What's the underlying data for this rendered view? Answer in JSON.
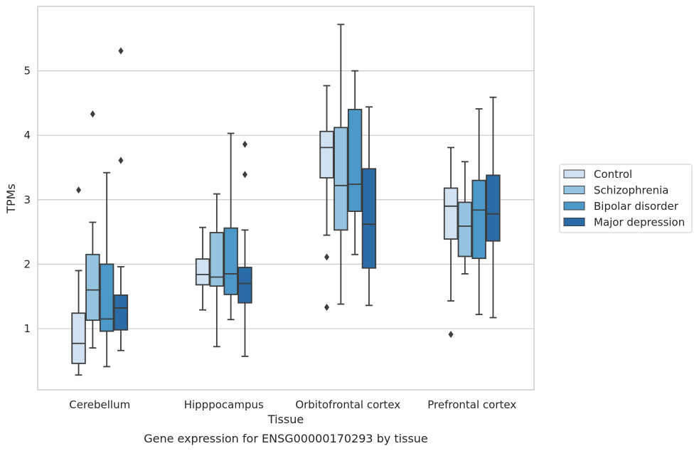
{
  "caption": "Gene expression for ENSG00000170293 by tissue",
  "chart_data": {
    "type": "box",
    "xlabel": "Tissue",
    "ylabel": "TPMs",
    "categories": [
      "Cerebellum",
      "Hipppocampus",
      "Orbitofrontal cortex",
      "Prefrontal cortex"
    ],
    "yticks": [
      1,
      2,
      3,
      4,
      5
    ],
    "ylim": [
      0.05,
      6.0
    ],
    "grid": "horizontal",
    "legend_position": "right",
    "series": [
      {
        "name": "Control",
        "color": "#d0e1f2",
        "boxes": [
          {
            "whisker_low": 0.28,
            "q1": 0.46,
            "median": 0.77,
            "q3": 1.24,
            "whisker_high": 1.9,
            "outliers": [
              3.15
            ]
          },
          {
            "whisker_low": 1.29,
            "q1": 1.68,
            "median": 1.84,
            "q3": 2.08,
            "whisker_high": 2.57,
            "outliers": []
          },
          {
            "whisker_low": 2.45,
            "q1": 3.34,
            "median": 3.81,
            "q3": 4.06,
            "whisker_high": 4.77,
            "outliers": [
              2.11,
              1.33
            ]
          },
          {
            "whisker_low": 1.43,
            "q1": 2.39,
            "median": 2.9,
            "q3": 3.18,
            "whisker_high": 3.81,
            "outliers": [
              0.91
            ]
          }
        ]
      },
      {
        "name": "Schizophrenia",
        "color": "#94c4df",
        "boxes": [
          {
            "whisker_low": 0.7,
            "q1": 1.13,
            "median": 1.6,
            "q3": 2.15,
            "whisker_high": 2.65,
            "outliers": [
              4.33
            ]
          },
          {
            "whisker_low": 0.72,
            "q1": 1.66,
            "median": 1.8,
            "q3": 2.49,
            "whisker_high": 3.09,
            "outliers": []
          },
          {
            "whisker_low": 1.38,
            "q1": 2.53,
            "median": 3.22,
            "q3": 4.12,
            "whisker_high": 5.72,
            "outliers": []
          },
          {
            "whisker_low": 1.85,
            "q1": 2.12,
            "median": 2.59,
            "q3": 2.96,
            "whisker_high": 3.59,
            "outliers": []
          }
        ]
      },
      {
        "name": "Bipolar disorder",
        "color": "#4b98c9",
        "boxes": [
          {
            "whisker_low": 0.41,
            "q1": 0.96,
            "median": 1.15,
            "q3": 2.0,
            "whisker_high": 3.42,
            "outliers": []
          },
          {
            "whisker_low": 1.14,
            "q1": 1.53,
            "median": 1.85,
            "q3": 2.56,
            "whisker_high": 4.03,
            "outliers": []
          },
          {
            "whisker_low": 2.15,
            "q1": 2.82,
            "median": 3.24,
            "q3": 4.4,
            "whisker_high": 5.0,
            "outliers": []
          },
          {
            "whisker_low": 1.22,
            "q1": 2.09,
            "median": 2.84,
            "q3": 3.3,
            "whisker_high": 4.41,
            "outliers": []
          }
        ]
      },
      {
        "name": "Major depression",
        "color": "#2b6ca7",
        "boxes": [
          {
            "whisker_low": 0.66,
            "q1": 0.98,
            "median": 1.32,
            "q3": 1.52,
            "whisker_high": 1.96,
            "outliers": [
              5.31,
              3.61
            ]
          },
          {
            "whisker_low": 0.57,
            "q1": 1.4,
            "median": 1.7,
            "q3": 1.95,
            "whisker_high": 2.53,
            "outliers": [
              3.86,
              3.39
            ]
          },
          {
            "whisker_low": 1.36,
            "q1": 1.94,
            "median": 2.62,
            "q3": 3.48,
            "whisker_high": 4.44,
            "outliers": []
          },
          {
            "whisker_low": 1.17,
            "q1": 2.36,
            "median": 2.78,
            "q3": 3.38,
            "whisker_high": 4.59,
            "outliers": []
          }
        ]
      }
    ]
  }
}
